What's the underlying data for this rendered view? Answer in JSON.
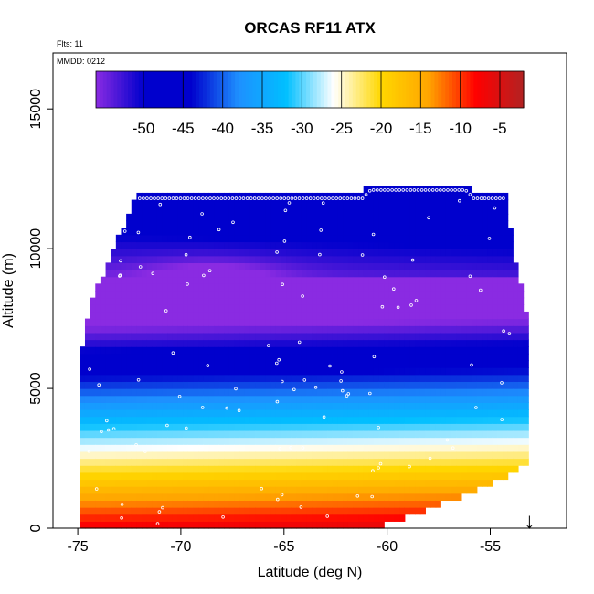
{
  "chart_data": {
    "type": "heatmap",
    "title": "ORCAS RF11 ATX",
    "annotations": {
      "flights": "Flts: 11",
      "date": "MMDD: 0212"
    },
    "xlabel": "Latitude (deg N)",
    "ylabel": "Altitude (m)",
    "xlim": [
      -76.2,
      -51.3
    ],
    "ylim": [
      0,
      17000
    ],
    "xticks": [
      -75,
      -70,
      -65,
      -60,
      -55
    ],
    "xtick_labels": [
      "-75",
      "-70",
      "-65",
      "-60",
      "-55"
    ],
    "yticks": [
      0,
      5000,
      10000,
      15000
    ],
    "ytick_labels": [
      "0",
      "5000",
      "10000",
      "15000"
    ],
    "colorbar": {
      "range": [
        -56,
        -2
      ],
      "ticks": [
        -50,
        -45,
        -40,
        -35,
        -30,
        -25,
        -20,
        -15,
        -10,
        -5
      ],
      "tick_labels": [
        "-50",
        "-45",
        "-40",
        "-35",
        "-30",
        "-25",
        "-20",
        "-15",
        "-10",
        "-5"
      ],
      "palette": [
        "#8a2be2",
        "#0000cd",
        "#0000cd",
        "#1e90ff",
        "#00bfff",
        "#ffffff",
        "#ffd700",
        "#ffa500",
        "#ff0000",
        "#b22222"
      ]
    },
    "field": {
      "lat_step": 0.25,
      "alt_step": 250,
      "surface_temp": -6,
      "lapse_rate_per_km": -6.8,
      "tropopause_alt": 9000,
      "tropopause_temp": -54,
      "upper_temp": -46,
      "top_alt_by_lat": [
        [
          -74.9,
          5600
        ],
        [
          -74.7,
          6900
        ],
        [
          -74.2,
          8200
        ],
        [
          -73.8,
          8900
        ],
        [
          -72.9,
          10500
        ],
        [
          -72.2,
          11900
        ],
        [
          -61.2,
          11900
        ],
        [
          -60.8,
          12200
        ],
        [
          -56.2,
          12200
        ],
        [
          -55.8,
          11900
        ],
        [
          -54.2,
          11900
        ],
        [
          -53.9,
          9600
        ],
        [
          -53.3,
          8200
        ],
        [
          -53.2,
          5800
        ]
      ],
      "bottom_alt_by_lat": [
        [
          -75.0,
          0
        ],
        [
          -61.0,
          0
        ],
        [
          -59.3,
          450
        ],
        [
          -57.0,
          1100
        ],
        [
          -55.0,
          1700
        ],
        [
          -53.6,
          2200
        ],
        [
          -53.1,
          2600
        ]
      ]
    },
    "ice_marker": {
      "symbol": "↓",
      "lat": -53.1
    }
  }
}
